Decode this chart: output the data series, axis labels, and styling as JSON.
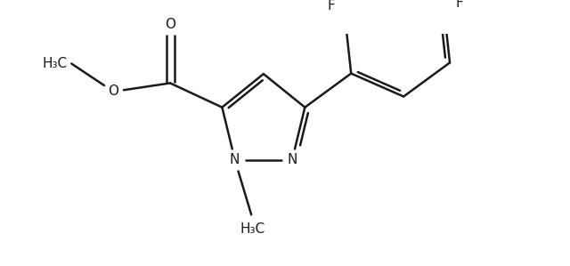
{
  "background_color": "#ffffff",
  "line_color": "#1a1a1a",
  "line_width": 1.8,
  "font_size": 11.0,
  "figsize": [
    6.4,
    2.99
  ],
  "dpi": 100,
  "xlim": [
    0.2,
    6.5
  ],
  "ylim": [
    0.1,
    3.0
  ]
}
